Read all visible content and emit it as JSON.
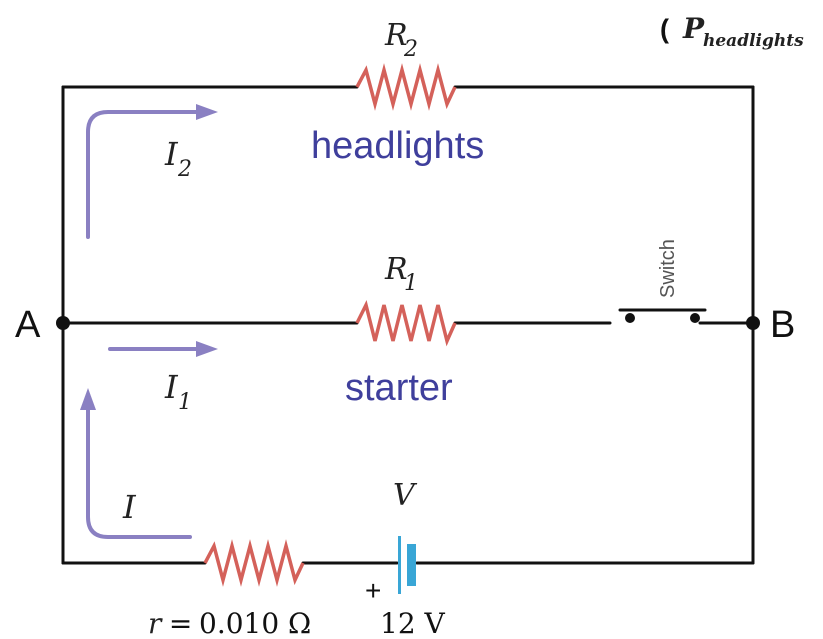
{
  "header_formula": {
    "prefix": "( ",
    "symbol": "P",
    "subscript": "headlights"
  },
  "nodes": {
    "left": "A",
    "right": "B"
  },
  "headlights_branch": {
    "resistor_symbol": "R",
    "resistor_subscript": "2",
    "label": "headlights",
    "current_symbol": "I",
    "current_subscript": "2"
  },
  "starter_branch": {
    "resistor_symbol": "R",
    "resistor_subscript": "1",
    "label": "starter",
    "current_symbol": "I",
    "current_subscript": "1",
    "switch_label": "Switch"
  },
  "battery_branch": {
    "current_symbol": "I",
    "emf_symbol": "V",
    "plus_sign": "+",
    "internal_resistance": {
      "symbol": "r",
      "equals": " = ",
      "value": "0.010 Ω"
    },
    "voltage": "12 V"
  },
  "colors": {
    "wire": "#111111",
    "resistor": "#d4615a",
    "current_arrow": "#8a80c2",
    "branch_label": "#3f3f9c",
    "battery": "#39a6d6"
  }
}
